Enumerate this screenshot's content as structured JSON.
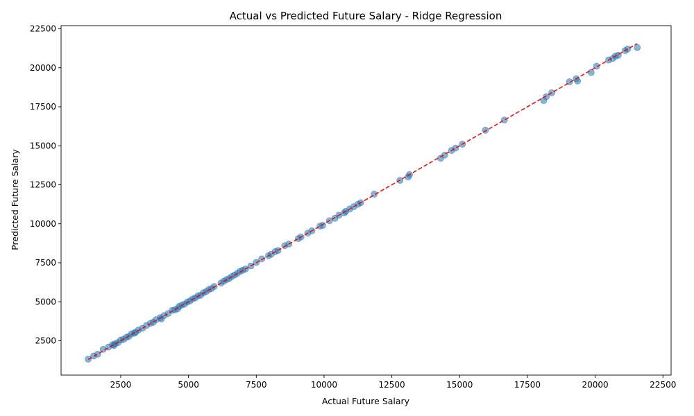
{
  "chart_data": {
    "type": "scatter",
    "title": "Actual vs Predicted Future Salary - Ridge Regression",
    "xlabel": "Actual Future Salary",
    "ylabel": "Predicted Future Salary",
    "xlim": [
      300,
      22800
    ],
    "ylim": [
      300,
      22700
    ],
    "xticks": [
      2500,
      5000,
      7500,
      10000,
      12500,
      15000,
      17500,
      20000,
      22500
    ],
    "yticks": [
      2500,
      5000,
      7500,
      10000,
      12500,
      15000,
      17500,
      20000,
      22500
    ],
    "grid": false,
    "point_color": "#1f77b4",
    "reference_line": {
      "style": "dashed",
      "color": "#ff0000",
      "from": [
        1300,
        1300
      ],
      "to": [
        21550,
        21550
      ]
    },
    "series": [
      {
        "points": [
          [
            1300,
            1320
          ],
          [
            1500,
            1520
          ],
          [
            1650,
            1640
          ],
          [
            1850,
            1950
          ],
          [
            2050,
            2100
          ],
          [
            2200,
            2250
          ],
          [
            2250,
            2200
          ],
          [
            2300,
            2320
          ],
          [
            2400,
            2380
          ],
          [
            2500,
            2550
          ],
          [
            2600,
            2580
          ],
          [
            2700,
            2720
          ],
          [
            2800,
            2780
          ],
          [
            2900,
            2950
          ],
          [
            3000,
            2980
          ],
          [
            3050,
            3050
          ],
          [
            3150,
            3180
          ],
          [
            3300,
            3300
          ],
          [
            3450,
            3480
          ],
          [
            3600,
            3620
          ],
          [
            3700,
            3680
          ],
          [
            3800,
            3850
          ],
          [
            3950,
            3980
          ],
          [
            4000,
            3900
          ],
          [
            4100,
            4120
          ],
          [
            4250,
            4250
          ],
          [
            4400,
            4450
          ],
          [
            4500,
            4480
          ],
          [
            4600,
            4550
          ],
          [
            4650,
            4700
          ],
          [
            4750,
            4780
          ],
          [
            4850,
            4850
          ],
          [
            4950,
            4980
          ],
          [
            5050,
            5050
          ],
          [
            5150,
            5180
          ],
          [
            5250,
            5250
          ],
          [
            5350,
            5380
          ],
          [
            5450,
            5420
          ],
          [
            5550,
            5580
          ],
          [
            5650,
            5650
          ],
          [
            5750,
            5780
          ],
          [
            5850,
            5850
          ],
          [
            5950,
            5980
          ],
          [
            6200,
            6200
          ],
          [
            6300,
            6320
          ],
          [
            6400,
            6420
          ],
          [
            6500,
            6480
          ],
          [
            6600,
            6620
          ],
          [
            6700,
            6720
          ],
          [
            6800,
            6820
          ],
          [
            6900,
            6950
          ],
          [
            7000,
            7020
          ],
          [
            7100,
            7100
          ],
          [
            7300,
            7300
          ],
          [
            7500,
            7520
          ],
          [
            7700,
            7750
          ],
          [
            7950,
            7950
          ],
          [
            8050,
            8050
          ],
          [
            8200,
            8220
          ],
          [
            8300,
            8280
          ],
          [
            8550,
            8600
          ],
          [
            8700,
            8700
          ],
          [
            9050,
            9050
          ],
          [
            9150,
            9150
          ],
          [
            9400,
            9400
          ],
          [
            9550,
            9550
          ],
          [
            9850,
            9850
          ],
          [
            9950,
            9900
          ],
          [
            10200,
            10200
          ],
          [
            10400,
            10350
          ],
          [
            10550,
            10550
          ],
          [
            10750,
            10700
          ],
          [
            10800,
            10800
          ],
          [
            10950,
            10950
          ],
          [
            11100,
            11100
          ],
          [
            11250,
            11250
          ],
          [
            11350,
            11350
          ],
          [
            11850,
            11900
          ],
          [
            12800,
            12780
          ],
          [
            13100,
            13000
          ],
          [
            13150,
            13150
          ],
          [
            14300,
            14200
          ],
          [
            14450,
            14400
          ],
          [
            14700,
            14700
          ],
          [
            14850,
            14850
          ],
          [
            15100,
            15100
          ],
          [
            15950,
            16000
          ],
          [
            16650,
            16650
          ],
          [
            18100,
            17900
          ],
          [
            18200,
            18150
          ],
          [
            18400,
            18400
          ],
          [
            19050,
            19100
          ],
          [
            19300,
            19300
          ],
          [
            19350,
            19150
          ],
          [
            19850,
            19700
          ],
          [
            20050,
            20100
          ],
          [
            20500,
            20500
          ],
          [
            20650,
            20600
          ],
          [
            20750,
            20750
          ],
          [
            20850,
            20800
          ],
          [
            21100,
            21100
          ],
          [
            21200,
            21200
          ],
          [
            21550,
            21300
          ]
        ]
      }
    ]
  }
}
